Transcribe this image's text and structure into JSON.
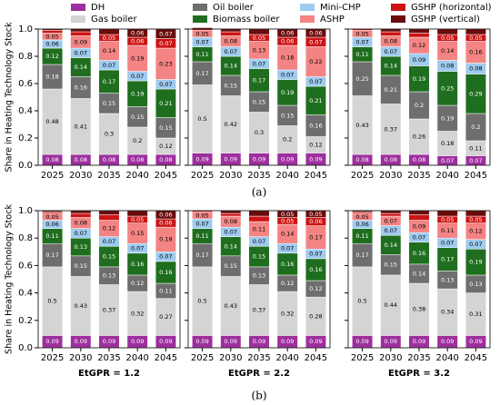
{
  "chart_data": [
    {
      "type": "stacked_bar",
      "y_label": "Share in Heating Technology Stock",
      "categories": [
        "2025",
        "2030",
        "2035",
        "2040",
        "2045"
      ],
      "ylim": [
        0,
        1
      ],
      "yticks": [
        {
          "value": 0,
          "label": "0.0"
        },
        {
          "value": 0.2,
          "label": "0.2"
        },
        {
          "value": 0.4,
          "label": "0.4"
        },
        {
          "value": 0.6,
          "label": "0.6"
        },
        {
          "value": 0.8,
          "label": "0.8"
        },
        {
          "value": 1,
          "label": "1.0"
        }
      ],
      "series": [
        {
          "name": "DH",
          "color": "#9e2f9e",
          "values": [
            0.08,
            0.08,
            0.08,
            0.08,
            0.08
          ]
        },
        {
          "name": "Gas boiler",
          "color": "#d4d4d4",
          "values": [
            0.48,
            0.41,
            0.3,
            0.2,
            0.12
          ]
        },
        {
          "name": "Oil boiler",
          "color": "#6e6e6e",
          "values": [
            0.18,
            0.16,
            0.15,
            0.15,
            0.15
          ]
        },
        {
          "name": "Biomass boiler",
          "color": "#1f6e1f",
          "values": [
            0.12,
            0.14,
            0.17,
            0.19,
            0.21
          ]
        },
        {
          "name": "Mini-CHP",
          "color": "#9ecbf0",
          "values": [
            0.06,
            0.07,
            0.07,
            0.07,
            0.07
          ]
        },
        {
          "name": "ASHP",
          "color": "#f48484",
          "values": [
            0.05,
            0.09,
            0.14,
            0.19,
            0.23
          ]
        },
        {
          "name": "GSHP (horizontal)",
          "color": "#cc1414",
          "values": [
            0.02,
            0.03,
            0.05,
            0.06,
            0.07
          ]
        },
        {
          "name": "GSHP (vertical)",
          "color": "#6a0c0c",
          "values": [
            0.01,
            0.02,
            0.04,
            0.06,
            0.07
          ]
        }
      ]
    },
    {
      "type": "stacked_bar",
      "caption": "(a)",
      "categories": [
        "2025",
        "2030",
        "2035",
        "2040",
        "2045"
      ],
      "ylim": [
        0,
        1
      ],
      "yticks": [
        {
          "value": 0,
          "label": "0.0"
        },
        {
          "value": 0.2,
          "label": "0.2"
        },
        {
          "value": 0.4,
          "label": "0.4"
        },
        {
          "value": 0.6,
          "label": "0.6"
        },
        {
          "value": 0.8,
          "label": "0.8"
        },
        {
          "value": 1,
          "label": "1.0"
        }
      ],
      "series": [
        {
          "name": "DH",
          "color": "#9e2f9e",
          "values": [
            0.09,
            0.09,
            0.09,
            0.09,
            0.09
          ]
        },
        {
          "name": "Gas boiler",
          "color": "#d4d4d4",
          "values": [
            0.5,
            0.42,
            0.3,
            0.2,
            0.12
          ]
        },
        {
          "name": "Oil boiler",
          "color": "#6e6e6e",
          "values": [
            0.17,
            0.15,
            0.15,
            0.15,
            0.16
          ]
        },
        {
          "name": "Biomass boiler",
          "color": "#1f6e1f",
          "values": [
            0.11,
            0.14,
            0.17,
            0.19,
            0.21
          ]
        },
        {
          "name": "Mini-CHP",
          "color": "#9ecbf0",
          "values": [
            0.07,
            0.07,
            0.07,
            0.07,
            0.07
          ]
        },
        {
          "name": "ASHP",
          "color": "#f48484",
          "values": [
            0.05,
            0.08,
            0.13,
            0.18,
            0.22
          ]
        },
        {
          "name": "GSHP (horizontal)",
          "color": "#cc1414",
          "values": [
            0.01,
            0.03,
            0.05,
            0.06,
            0.07
          ]
        },
        {
          "name": "GSHP (vertical)",
          "color": "#6a0c0c",
          "values": [
            0.01,
            0.02,
            0.04,
            0.06,
            0.06
          ]
        }
      ]
    },
    {
      "type": "stacked_bar",
      "categories": [
        "2025",
        "2030",
        "2035",
        "2040",
        "2045"
      ],
      "ylim": [
        0,
        1
      ],
      "yticks": [
        {
          "value": 0,
          "label": "0.0"
        },
        {
          "value": 0.2,
          "label": "0.2"
        },
        {
          "value": 0.4,
          "label": "0.4"
        },
        {
          "value": 0.6,
          "label": "0.6"
        },
        {
          "value": 0.8,
          "label": "0.8"
        },
        {
          "value": 1,
          "label": "1.0"
        }
      ],
      "series": [
        {
          "name": "DH",
          "color": "#9e2f9e",
          "values": [
            0.08,
            0.08,
            0.08,
            0.07,
            0.07
          ]
        },
        {
          "name": "Gas boiler",
          "color": "#d4d4d4",
          "values": [
            0.43,
            0.37,
            0.26,
            0.18,
            0.11
          ]
        },
        {
          "name": "Oil boiler",
          "color": "#6e6e6e",
          "values": [
            0.25,
            0.21,
            0.2,
            0.19,
            0.2
          ]
        },
        {
          "name": "Biomass boiler",
          "color": "#1f6e1f",
          "values": [
            0.11,
            0.14,
            0.19,
            0.25,
            0.29
          ]
        },
        {
          "name": "Mini-CHP",
          "color": "#9ecbf0",
          "values": [
            0.07,
            0.07,
            0.09,
            0.08,
            0.08
          ]
        },
        {
          "name": "ASHP",
          "color": "#f48484",
          "values": [
            0.05,
            0.08,
            0.12,
            0.14,
            0.16
          ]
        },
        {
          "name": "GSHP (horizontal)",
          "color": "#cc1414",
          "values": [
            0.01,
            0.03,
            0.03,
            0.05,
            0.05
          ]
        },
        {
          "name": "GSHP (vertical)",
          "color": "#6a0c0c",
          "values": [
            0.0,
            0.02,
            0.03,
            0.04,
            0.04
          ]
        }
      ]
    },
    {
      "type": "stacked_bar",
      "y_label": "Share in Heating Technology Stock",
      "xlabel": "EtGPR = 1.2",
      "categories": [
        "2025",
        "2030",
        "2035",
        "2040",
        "2045"
      ],
      "ylim": [
        0,
        1
      ],
      "yticks": [
        {
          "value": 0,
          "label": "0.0"
        },
        {
          "value": 0.2,
          "label": "0.2"
        },
        {
          "value": 0.4,
          "label": "0.4"
        },
        {
          "value": 0.6,
          "label": "0.6"
        },
        {
          "value": 0.8,
          "label": "0.8"
        },
        {
          "value": 1,
          "label": "1.0"
        }
      ],
      "series": [
        {
          "name": "DH",
          "color": "#9e2f9e",
          "values": [
            0.09,
            0.09,
            0.09,
            0.09,
            0.09
          ]
        },
        {
          "name": "Gas boiler",
          "color": "#d4d4d4",
          "values": [
            0.5,
            0.43,
            0.37,
            0.32,
            0.27
          ]
        },
        {
          "name": "Oil boiler",
          "color": "#6e6e6e",
          "values": [
            0.17,
            0.15,
            0.13,
            0.12,
            0.11
          ]
        },
        {
          "name": "Biomass boiler",
          "color": "#1f6e1f",
          "values": [
            0.11,
            0.13,
            0.15,
            0.16,
            0.16
          ]
        },
        {
          "name": "Mini-CHP",
          "color": "#9ecbf0",
          "values": [
            0.06,
            0.07,
            0.07,
            0.07,
            0.07
          ]
        },
        {
          "name": "ASHP",
          "color": "#f48484",
          "values": [
            0.05,
            0.08,
            0.12,
            0.15,
            0.18
          ]
        },
        {
          "name": "GSHP (horizontal)",
          "color": "#cc1414",
          "values": [
            0.01,
            0.03,
            0.04,
            0.05,
            0.06
          ]
        },
        {
          "name": "GSHP (vertical)",
          "color": "#6a0c0c",
          "values": [
            0.01,
            0.02,
            0.03,
            0.04,
            0.06
          ]
        }
      ]
    },
    {
      "type": "stacked_bar",
      "caption": "(b)",
      "xlabel": "EtGPR = 2.2",
      "categories": [
        "2025",
        "2030",
        "2035",
        "2040",
        "2045"
      ],
      "ylim": [
        0,
        1
      ],
      "yticks": [
        {
          "value": 0,
          "label": "0.0"
        },
        {
          "value": 0.2,
          "label": "0.2"
        },
        {
          "value": 0.4,
          "label": "0.4"
        },
        {
          "value": 0.6,
          "label": "0.6"
        },
        {
          "value": 0.8,
          "label": "0.8"
        },
        {
          "value": 1,
          "label": "1.0"
        }
      ],
      "series": [
        {
          "name": "DH",
          "color": "#9e2f9e",
          "values": [
            0.09,
            0.09,
            0.09,
            0.09,
            0.09
          ]
        },
        {
          "name": "Gas boiler",
          "color": "#d4d4d4",
          "values": [
            0.5,
            0.43,
            0.37,
            0.32,
            0.28
          ]
        },
        {
          "name": "Oil boiler",
          "color": "#6e6e6e",
          "values": [
            0.17,
            0.15,
            0.13,
            0.12,
            0.12
          ]
        },
        {
          "name": "Biomass boiler",
          "color": "#1f6e1f",
          "values": [
            0.11,
            0.14,
            0.15,
            0.16,
            0.16
          ]
        },
        {
          "name": "Mini-CHP",
          "color": "#9ecbf0",
          "values": [
            0.07,
            0.07,
            0.07,
            0.07,
            0.07
          ]
        },
        {
          "name": "ASHP",
          "color": "#f48484",
          "values": [
            0.05,
            0.08,
            0.11,
            0.14,
            0.17
          ]
        },
        {
          "name": "GSHP (horizontal)",
          "color": "#cc1414",
          "values": [
            0.01,
            0.02,
            0.04,
            0.05,
            0.06
          ]
        },
        {
          "name": "GSHP (vertical)",
          "color": "#6a0c0c",
          "values": [
            0.0,
            0.02,
            0.04,
            0.05,
            0.05
          ]
        }
      ]
    },
    {
      "type": "stacked_bar",
      "xlabel": "EtGPR = 3.2",
      "categories": [
        "2025",
        "2030",
        "2035",
        "2040",
        "2045"
      ],
      "ylim": [
        0,
        1
      ],
      "yticks": [
        {
          "value": 0,
          "label": "0.0"
        },
        {
          "value": 0.2,
          "label": "0.2"
        },
        {
          "value": 0.4,
          "label": "0.4"
        },
        {
          "value": 0.6,
          "label": "0.6"
        },
        {
          "value": 0.8,
          "label": "0.8"
        },
        {
          "value": 1,
          "label": "1.0"
        }
      ],
      "series": [
        {
          "name": "DH",
          "color": "#9e2f9e",
          "values": [
            0.09,
            0.09,
            0.09,
            0.09,
            0.09
          ]
        },
        {
          "name": "Gas boiler",
          "color": "#d4d4d4",
          "values": [
            0.5,
            0.44,
            0.38,
            0.34,
            0.31
          ]
        },
        {
          "name": "Oil boiler",
          "color": "#6e6e6e",
          "values": [
            0.17,
            0.15,
            0.14,
            0.13,
            0.13
          ]
        },
        {
          "name": "Biomass boiler",
          "color": "#1f6e1f",
          "values": [
            0.11,
            0.14,
            0.16,
            0.17,
            0.19
          ]
        },
        {
          "name": "Mini-CHP",
          "color": "#9ecbf0",
          "values": [
            0.06,
            0.07,
            0.07,
            0.07,
            0.07
          ]
        },
        {
          "name": "ASHP",
          "color": "#f48484",
          "values": [
            0.05,
            0.07,
            0.09,
            0.11,
            0.12
          ]
        },
        {
          "name": "GSHP (horizontal)",
          "color": "#cc1414",
          "values": [
            0.01,
            0.02,
            0.04,
            0.05,
            0.05
          ]
        },
        {
          "name": "GSHP (vertical)",
          "color": "#6a0c0c",
          "values": [
            0.01,
            0.02,
            0.03,
            0.04,
            0.04
          ]
        }
      ]
    }
  ]
}
